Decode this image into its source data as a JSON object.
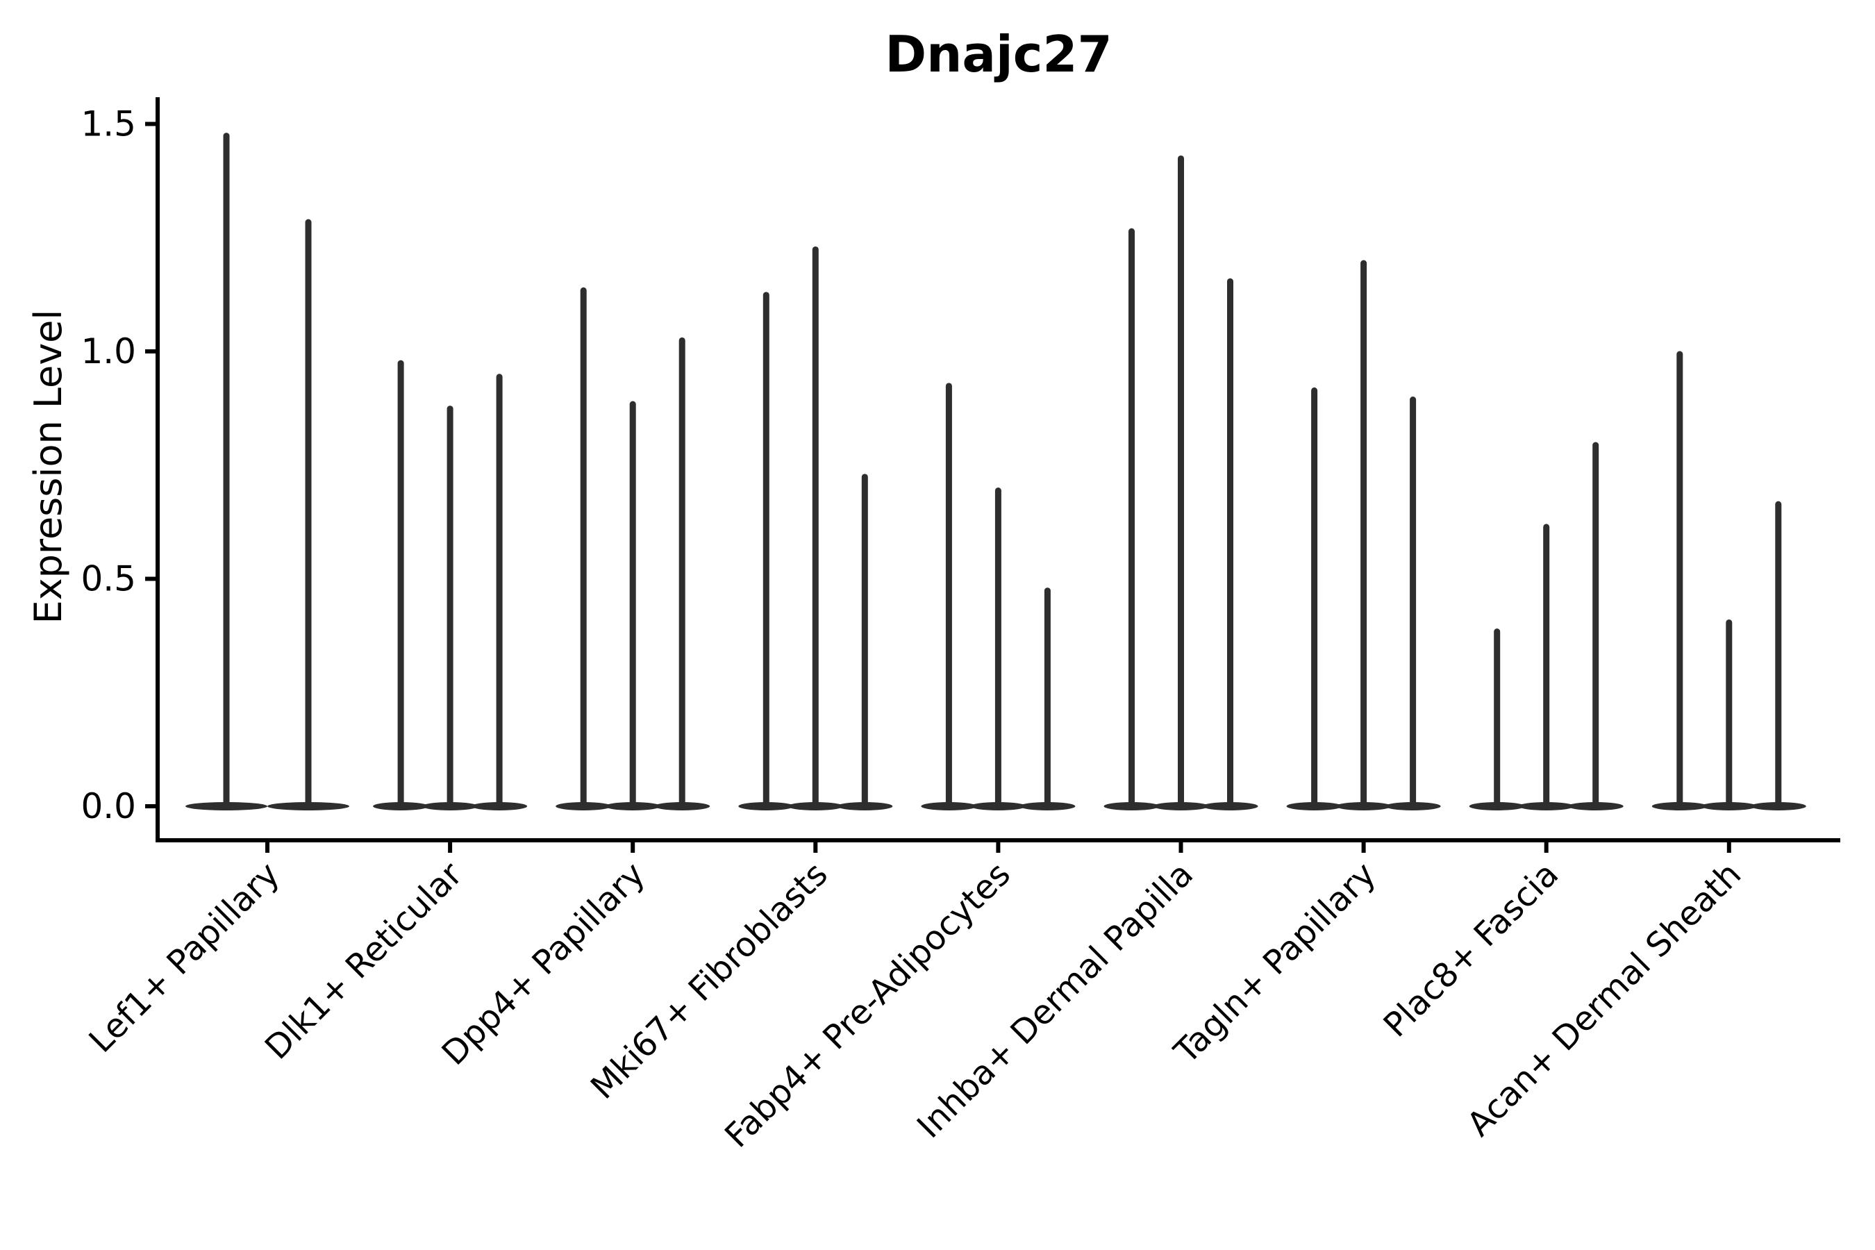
{
  "chart_data": {
    "type": "violin",
    "title": "Dnajc27",
    "ylabel": "Expression Level",
    "xlabel": "",
    "ylim": [
      -0.075,
      1.56
    ],
    "yticks": [
      {
        "value": 0.0,
        "label": "0.0"
      },
      {
        "value": 0.5,
        "label": "0.5"
      },
      {
        "value": 1.0,
        "label": "1.0"
      },
      {
        "value": 1.5,
        "label": "1.5"
      }
    ],
    "grid": false,
    "legend_position": "none",
    "violin_color": "#2e2e2e",
    "axis_color": "#000000",
    "background_color": "#ffffff",
    "baseline_value": 0.0,
    "categories": [
      "Lef1+ Papillary",
      "Dlk1+ Reticular",
      "Dpp4+ Papillary",
      "Mki67+ Fibroblasts",
      "Fabp4+ Pre-Adipocytes",
      "Inhba+ Dermal Papilla",
      "Tagln+ Papillary",
      "Plac8+ Fascia",
      "Acan+ Dermal Sheath"
    ],
    "groups": [
      {
        "category": "Lef1+ Papillary",
        "violin_maxima": [
          1.48,
          1.29
        ]
      },
      {
        "category": "Dlk1+ Reticular",
        "violin_maxima": [
          0.98,
          0.88,
          0.95
        ]
      },
      {
        "category": "Dpp4+ Papillary",
        "violin_maxima": [
          1.14,
          0.89,
          1.03
        ]
      },
      {
        "category": "Mki67+ Fibroblasts",
        "violin_maxima": [
          1.13,
          1.23,
          0.73
        ]
      },
      {
        "category": "Fabp4+ Pre-Adipocytes",
        "violin_maxima": [
          0.93,
          0.7,
          0.48
        ]
      },
      {
        "category": "Inhba+ Dermal Papilla",
        "violin_maxima": [
          1.27,
          1.43,
          1.16
        ]
      },
      {
        "category": "Tagln+ Papillary",
        "violin_maxima": [
          0.92,
          1.2,
          0.9
        ]
      },
      {
        "category": "Plac8+ Fascia",
        "violin_maxima": [
          0.39,
          0.62,
          0.8
        ]
      },
      {
        "category": "Acan+ Dermal Sheath",
        "violin_maxima": [
          1.0,
          0.41,
          0.67
        ]
      }
    ]
  }
}
